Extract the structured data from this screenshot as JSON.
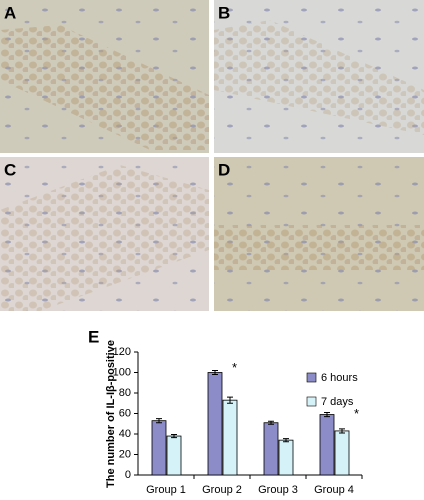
{
  "panels": [
    {
      "label": "A"
    },
    {
      "label": "B"
    },
    {
      "label": "C"
    },
    {
      "label": "D"
    }
  ],
  "chart_data": {
    "type": "bar",
    "panel_label": "E",
    "y_label": "The number of IL-Iβ-positive",
    "categories": [
      "Group 1",
      "Group 2",
      "Group 3",
      "Group 4"
    ],
    "series": [
      {
        "name": "6 hours",
        "color": "#8c8cc8",
        "values": [
          53,
          100,
          51,
          59
        ],
        "errors": [
          2,
          2,
          1.5,
          2
        ]
      },
      {
        "name": "7 days",
        "color": "#d4f2f8",
        "values": [
          38,
          73,
          34,
          43
        ],
        "errors": [
          1.5,
          3,
          1.5,
          2
        ]
      }
    ],
    "annotations": [
      "*",
      "*"
    ],
    "ylim": [
      0,
      120
    ],
    "yticks": [
      0,
      20,
      40,
      60,
      80,
      100,
      120
    ],
    "legend": "right"
  }
}
